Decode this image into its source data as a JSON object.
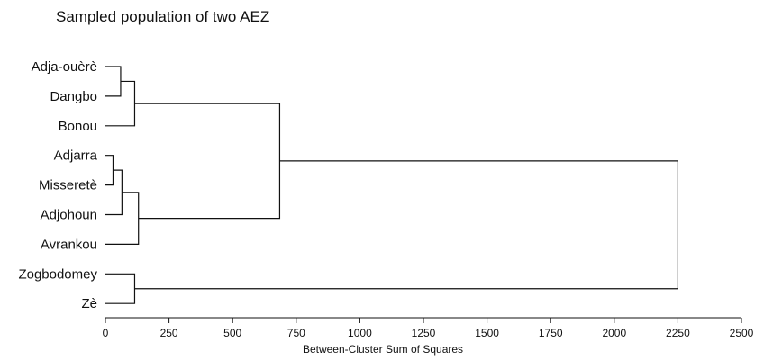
{
  "chart_data": {
    "type": "dendrogram",
    "title": "Sampled population of two AEZ",
    "xlabel": "Between-Cluster Sum of Squares",
    "xlim": [
      0,
      2500
    ],
    "xticks": [
      0,
      250,
      500,
      750,
      1000,
      1250,
      1500,
      1750,
      2000,
      2250,
      2500
    ],
    "leaves": [
      "Adja-ouèrè",
      "Dangbo",
      "Bonou",
      "Adjarra",
      "Misseretè",
      "Adjohoun",
      "Avrankou",
      "Zogbodomey",
      "Zè"
    ],
    "merges": [
      {
        "a": "Adja-ouèrè",
        "b": "Dangbo",
        "height": 60
      },
      {
        "a": "Adjarra",
        "b": "Misseretè",
        "height": 30
      },
      {
        "a": "Zogbodomey",
        "b": "Zè",
        "height": 115
      },
      {
        "a": "Adjarra+Misseretè",
        "b": "Adjohoun",
        "height": 65
      },
      {
        "a": "Adja-ouèrè+Dangbo",
        "b": "Bonou",
        "height": 115
      },
      {
        "a": "Adjarra+Misseretè+Adjohoun",
        "b": "Avrankou",
        "height": 130
      },
      {
        "a": "Adja-ouèrè+Dangbo+Bonou",
        "b": "Adjarra+Misseretè+Adjohoun+Avrankou",
        "height": 685
      },
      {
        "a": "Adja-ouèrè+Dangbo+Bonou+Adjarra+Misseretè+Adjohoun+Avrankou",
        "b": "Zogbodomey+Zè",
        "height": 2250
      }
    ]
  }
}
